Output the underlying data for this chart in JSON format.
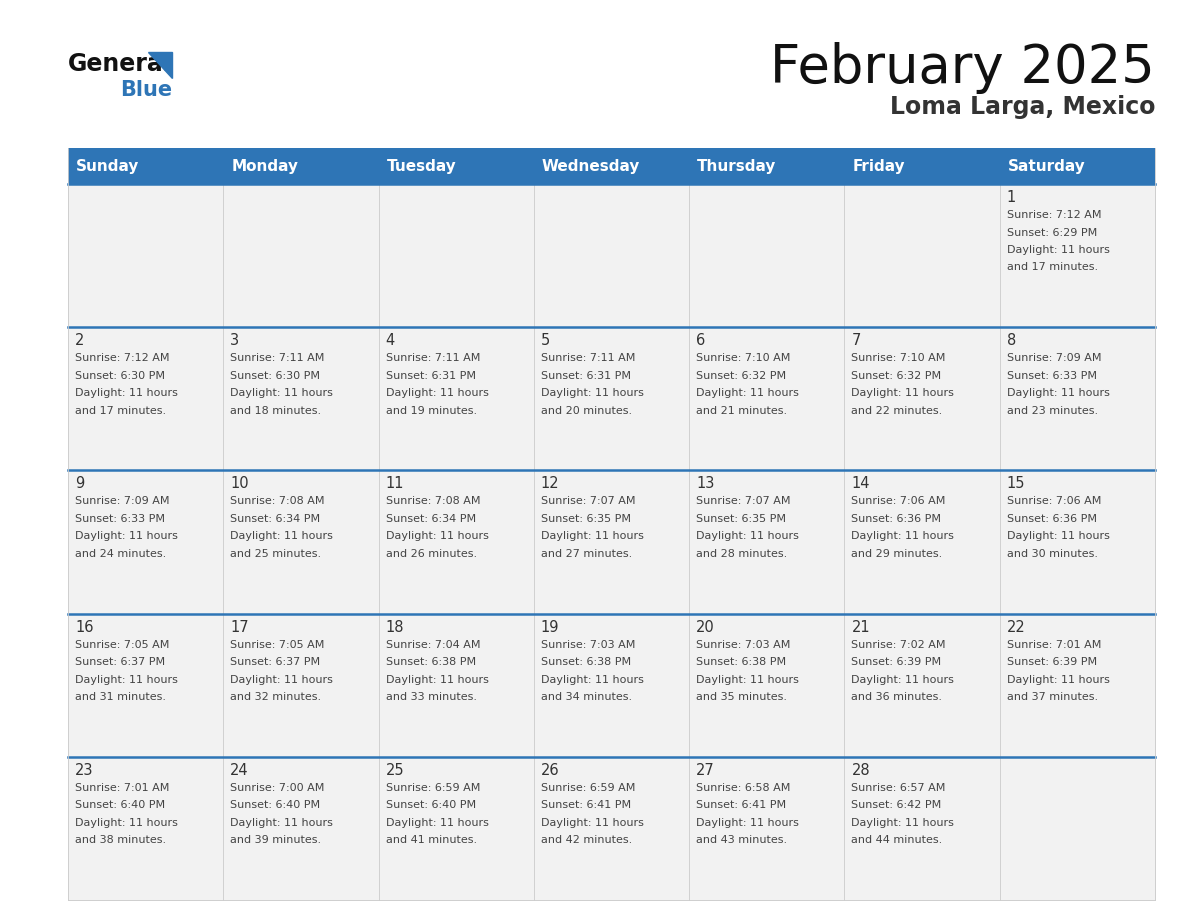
{
  "title": "February 2025",
  "subtitle": "Loma Larga, Mexico",
  "header_bg": "#2E75B6",
  "header_text_color": "#FFFFFF",
  "header_days": [
    "Sunday",
    "Monday",
    "Tuesday",
    "Wednesday",
    "Thursday",
    "Friday",
    "Saturday"
  ],
  "cell_bg": "#F2F2F2",
  "day_number_color": "#333333",
  "info_text_color": "#444444",
  "divider_color": "#2E75B6",
  "background_color": "#FFFFFF",
  "logo_general_color": "#111111",
  "logo_blue_color": "#2E75B6",
  "calendar_data": [
    [
      null,
      null,
      null,
      null,
      null,
      null,
      {
        "day": 1,
        "sunrise": "7:12 AM",
        "sunset": "6:29 PM",
        "daylight": "11 hours and 17 minutes."
      }
    ],
    [
      {
        "day": 2,
        "sunrise": "7:12 AM",
        "sunset": "6:30 PM",
        "daylight": "11 hours and 17 minutes."
      },
      {
        "day": 3,
        "sunrise": "7:11 AM",
        "sunset": "6:30 PM",
        "daylight": "11 hours and 18 minutes."
      },
      {
        "day": 4,
        "sunrise": "7:11 AM",
        "sunset": "6:31 PM",
        "daylight": "11 hours and 19 minutes."
      },
      {
        "day": 5,
        "sunrise": "7:11 AM",
        "sunset": "6:31 PM",
        "daylight": "11 hours and 20 minutes."
      },
      {
        "day": 6,
        "sunrise": "7:10 AM",
        "sunset": "6:32 PM",
        "daylight": "11 hours and 21 minutes."
      },
      {
        "day": 7,
        "sunrise": "7:10 AM",
        "sunset": "6:32 PM",
        "daylight": "11 hours and 22 minutes."
      },
      {
        "day": 8,
        "sunrise": "7:09 AM",
        "sunset": "6:33 PM",
        "daylight": "11 hours and 23 minutes."
      }
    ],
    [
      {
        "day": 9,
        "sunrise": "7:09 AM",
        "sunset": "6:33 PM",
        "daylight": "11 hours and 24 minutes."
      },
      {
        "day": 10,
        "sunrise": "7:08 AM",
        "sunset": "6:34 PM",
        "daylight": "11 hours and 25 minutes."
      },
      {
        "day": 11,
        "sunrise": "7:08 AM",
        "sunset": "6:34 PM",
        "daylight": "11 hours and 26 minutes."
      },
      {
        "day": 12,
        "sunrise": "7:07 AM",
        "sunset": "6:35 PM",
        "daylight": "11 hours and 27 minutes."
      },
      {
        "day": 13,
        "sunrise": "7:07 AM",
        "sunset": "6:35 PM",
        "daylight": "11 hours and 28 minutes."
      },
      {
        "day": 14,
        "sunrise": "7:06 AM",
        "sunset": "6:36 PM",
        "daylight": "11 hours and 29 minutes."
      },
      {
        "day": 15,
        "sunrise": "7:06 AM",
        "sunset": "6:36 PM",
        "daylight": "11 hours and 30 minutes."
      }
    ],
    [
      {
        "day": 16,
        "sunrise": "7:05 AM",
        "sunset": "6:37 PM",
        "daylight": "11 hours and 31 minutes."
      },
      {
        "day": 17,
        "sunrise": "7:05 AM",
        "sunset": "6:37 PM",
        "daylight": "11 hours and 32 minutes."
      },
      {
        "day": 18,
        "sunrise": "7:04 AM",
        "sunset": "6:38 PM",
        "daylight": "11 hours and 33 minutes."
      },
      {
        "day": 19,
        "sunrise": "7:03 AM",
        "sunset": "6:38 PM",
        "daylight": "11 hours and 34 minutes."
      },
      {
        "day": 20,
        "sunrise": "7:03 AM",
        "sunset": "6:38 PM",
        "daylight": "11 hours and 35 minutes."
      },
      {
        "day": 21,
        "sunrise": "7:02 AM",
        "sunset": "6:39 PM",
        "daylight": "11 hours and 36 minutes."
      },
      {
        "day": 22,
        "sunrise": "7:01 AM",
        "sunset": "6:39 PM",
        "daylight": "11 hours and 37 minutes."
      }
    ],
    [
      {
        "day": 23,
        "sunrise": "7:01 AM",
        "sunset": "6:40 PM",
        "daylight": "11 hours and 38 minutes."
      },
      {
        "day": 24,
        "sunrise": "7:00 AM",
        "sunset": "6:40 PM",
        "daylight": "11 hours and 39 minutes."
      },
      {
        "day": 25,
        "sunrise": "6:59 AM",
        "sunset": "6:40 PM",
        "daylight": "11 hours and 41 minutes."
      },
      {
        "day": 26,
        "sunrise": "6:59 AM",
        "sunset": "6:41 PM",
        "daylight": "11 hours and 42 minutes."
      },
      {
        "day": 27,
        "sunrise": "6:58 AM",
        "sunset": "6:41 PM",
        "daylight": "11 hours and 43 minutes."
      },
      {
        "day": 28,
        "sunrise": "6:57 AM",
        "sunset": "6:42 PM",
        "daylight": "11 hours and 44 minutes."
      },
      null
    ]
  ]
}
